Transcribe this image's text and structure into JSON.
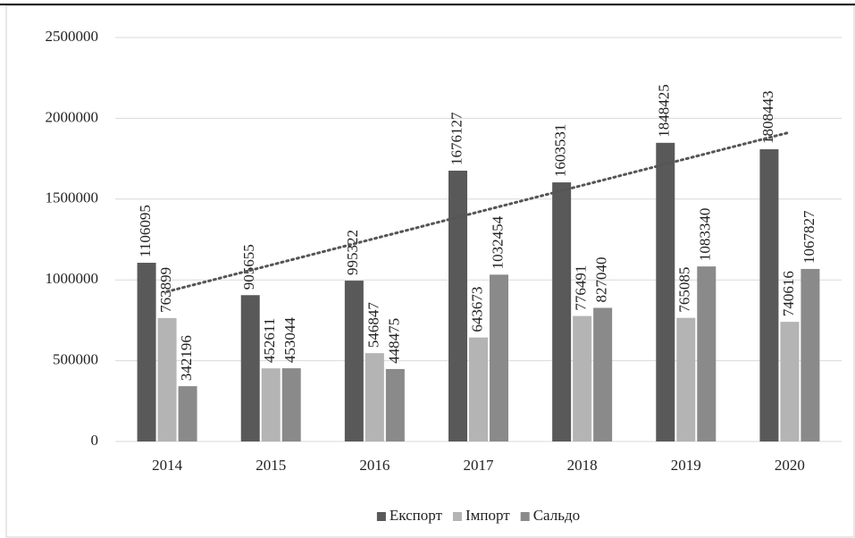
{
  "chart_data": {
    "type": "bar",
    "categories": [
      "2014",
      "2015",
      "2016",
      "2017",
      "2018",
      "2019",
      "2020"
    ],
    "series": [
      {
        "name": "Експорт",
        "color": "#595959",
        "values": [
          1106095,
          905655,
          995322,
          1676127,
          1603531,
          1848425,
          1808443
        ]
      },
      {
        "name": "Імпорт",
        "color": "#b4b4b4",
        "values": [
          763899,
          452611,
          546847,
          643673,
          776491,
          765085,
          740616
        ]
      },
      {
        "name": "Сальдо",
        "color": "#8a8a8a",
        "values": [
          342196,
          453044,
          448475,
          1032454,
          827040,
          1083340,
          1067827
        ]
      }
    ],
    "ylim": [
      0,
      2500000
    ],
    "yticks": [
      0,
      500000,
      1000000,
      1500000,
      2000000,
      2500000
    ],
    "grid": true,
    "trendline": {
      "series": 0,
      "type": "linear",
      "color": "#555555"
    },
    "legend": "bottom"
  }
}
